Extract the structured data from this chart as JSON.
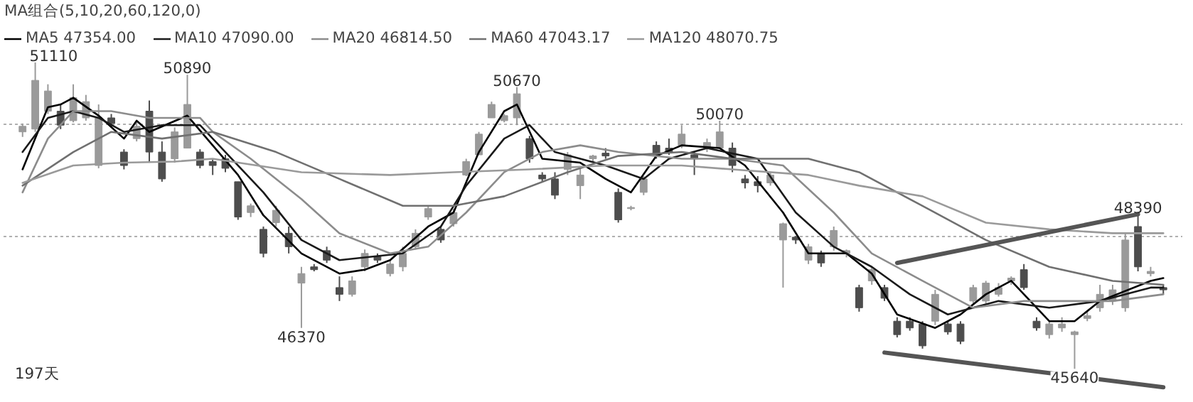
{
  "chart_data": {
    "type": "candlestick",
    "legend_title": "MA组合(5,10,20,60,120,0)",
    "legend": "top",
    "grid": "y",
    "tick_labels": false,
    "colors": [
      "#9a9a9a",
      "#9a9a9a",
      "#9a9a9a",
      "#4d4d4d",
      "#9a9a9a",
      "#9a9a9a",
      "#9a9a9a",
      "#4d4d4d",
      "#4d4d4d",
      "#9a9a9a",
      "#4d4d4d",
      "#4d4d4d",
      "#9a9a9a",
      "#9a9a9a",
      "#4d4d4d",
      "#4d4d4d",
      "#4d4d4d",
      "#4d4d4d",
      "#9a9a9a",
      "#4d4d4d",
      "#9a9a9a",
      "#4d4d4d",
      "#9a9a9a",
      "#4d4d4d",
      "#4d4d4d",
      "#4d4d4d",
      "#9a9a9a",
      "#9a9a9a",
      "#4d4d4d",
      "#9a9a9a",
      "#9a9a9a",
      "#9a9a9a",
      "#9a9a9a",
      "#4d4d4d",
      "#9a9a9a",
      "#9a9a9a",
      "#9a9a9a",
      "#9a9a9a",
      "#9a9a9a",
      "#9a9a9a",
      "#4d4d4d",
      "#4d4d4d",
      "#4d4d4d",
      "#9a9a9a",
      "#9a9a9a",
      "#9a9a9a",
      "#4d4d4d",
      "#4d4d4d",
      "#9a9a9a",
      "#9a9a9a",
      "#4d4d4d",
      "#4d4d4d",
      "#9a9a9a",
      "#4d4d4d",
      "#9a9a9a",
      "#9a9a9a",
      "#4d4d4d",
      "#4d4d4d",
      "#4d4d4d",
      "#9a9a9a",
      "#9a9a9a",
      "#4d4d4d",
      "#9a9a9a",
      "#4d4d4d",
      "#9a9a9a",
      "#9a9a9a",
      "#4d4d4d",
      "#9a9a9a",
      "#4d4d4d",
      "#4d4d4d",
      "#4d4d4d",
      "#4d4d4d",
      "#9a9a9a",
      "#4d4d4d",
      "#4d4d4d",
      "#9a9a9a",
      "#9a9a9a",
      "#9a9a9a",
      "#9a9a9a",
      "#4d4d4d",
      "#4d4d4d",
      "#9a9a9a",
      "#9a9a9a",
      "#9a9a9a",
      "#9a9a9a",
      "#9a9a9a",
      "#9a9a9a",
      "#9a9a9a",
      "#4d4d4d",
      "#9a9a9a",
      "#4d4d4d"
    ],
    "value_labels": [
      null,
      "51110",
      null,
      null,
      null,
      null,
      null,
      null,
      null,
      null,
      null,
      null,
      null,
      "50890",
      null,
      null,
      null,
      null,
      null,
      null,
      null,
      null,
      "46370",
      null,
      null,
      null,
      null,
      null,
      null,
      null,
      null,
      null,
      null,
      null,
      null,
      null,
      null,
      null,
      null,
      "50670",
      null,
      null,
      null,
      null,
      null,
      null,
      null,
      null,
      null,
      null,
      null,
      null,
      null,
      null,
      null,
      "50070",
      null,
      null,
      null,
      null,
      null,
      null,
      null,
      null,
      null,
      null,
      null,
      null,
      null,
      null,
      null,
      null,
      null,
      null,
      null,
      null,
      null,
      null,
      null,
      null,
      null,
      null,
      null,
      "45640",
      null,
      null,
      null,
      null,
      "48390",
      null,
      null
    ],
    "categories": [
      null,
      null,
      null,
      null,
      null,
      null,
      null,
      null,
      null,
      null,
      null,
      null,
      null,
      null,
      null,
      null,
      null,
      null,
      null,
      null,
      null,
      null,
      null,
      null,
      null,
      null,
      null,
      null,
      null,
      null,
      null,
      null,
      null,
      null,
      null,
      null,
      null,
      null,
      null,
      null,
      null,
      null,
      null,
      null,
      null,
      null,
      null,
      null,
      null,
      null,
      null,
      null,
      null,
      null,
      null,
      null,
      null,
      null,
      null,
      null,
      null,
      null,
      null,
      null,
      null,
      null,
      null,
      null,
      null,
      null,
      null,
      null,
      null,
      null,
      null,
      null,
      null,
      null,
      null,
      null,
      null,
      null,
      null,
      null,
      null,
      null,
      null,
      null,
      null,
      null,
      null
    ],
    "yticks": [
      {
        "value": 50000,
        "label": null
      },
      {
        "value": 48000,
        "label": null
      }
    ],
    "ohlc": [
      [
        49870,
        50020,
        49780,
        49970
      ],
      [
        49920,
        51110,
        49870,
        50790
      ],
      [
        50240,
        50720,
        50190,
        50600
      ],
      [
        50240,
        50360,
        49920,
        49990
      ],
      [
        50070,
        50720,
        50040,
        50480
      ],
      [
        50120,
        50530,
        50070,
        50410
      ],
      [
        49270,
        50360,
        49220,
        50120
      ],
      [
        50120,
        50190,
        49950,
        50020
      ],
      [
        49510,
        49560,
        49200,
        49270
      ],
      [
        49750,
        50040,
        49700,
        49970
      ],
      [
        50240,
        50430,
        49320,
        49510
      ],
      [
        49510,
        49700,
        48980,
        49030
      ],
      [
        49390,
        49950,
        49320,
        49870
      ],
      [
        49580,
        50890,
        49580,
        50360
      ],
      [
        49510,
        49560,
        49220,
        49270
      ],
      [
        49340,
        49390,
        49100,
        49270
      ],
      [
        49390,
        49460,
        49150,
        49220
      ],
      [
        48980,
        48980,
        48300,
        48350
      ],
      [
        48430,
        48590,
        48350,
        48550
      ],
      [
        48130,
        48180,
        47630,
        47700
      ],
      [
        48250,
        48550,
        48180,
        48470
      ],
      [
        48060,
        48180,
        47700,
        47820
      ],
      [
        47170,
        47460,
        46370,
        47340
      ],
      [
        47460,
        47510,
        47380,
        47410
      ],
      [
        47750,
        47820,
        47530,
        47580
      ],
      [
        47090,
        47290,
        46850,
        46970
      ],
      [
        46970,
        47290,
        46930,
        47210
      ],
      [
        47460,
        47770,
        47380,
        47700
      ],
      [
        47650,
        47700,
        47530,
        47580
      ],
      [
        47340,
        47580,
        47290,
        47510
      ],
      [
        47460,
        47820,
        47380,
        47700
      ],
      [
        47820,
        48130,
        47770,
        48060
      ],
      [
        48350,
        48550,
        48300,
        48500
      ],
      [
        48130,
        48180,
        47890,
        47940
      ],
      [
        48230,
        48500,
        48180,
        48430
      ],
      [
        49100,
        49390,
        49080,
        49340
      ],
      [
        49460,
        49870,
        49460,
        49830
      ],
      [
        50120,
        50410,
        50120,
        50360
      ],
      [
        50070,
        50190,
        50040,
        50160
      ],
      [
        50120,
        50670,
        49990,
        50550
      ],
      [
        49750,
        49800,
        49320,
        49390
      ],
      [
        49100,
        49150,
        48980,
        49030
      ],
      [
        49030,
        49150,
        48670,
        48740
      ],
      [
        49200,
        49510,
        49100,
        49460
      ],
      [
        48910,
        49220,
        48670,
        49100
      ],
      [
        49390,
        49460,
        49320,
        49440
      ],
      [
        49490,
        49580,
        49390,
        49440
      ],
      [
        48790,
        48860,
        48250,
        48300
      ],
      [
        48500,
        48550,
        48470,
        48520
      ],
      [
        48790,
        49080,
        48740,
        49030
      ],
      [
        49630,
        49700,
        49390,
        49460
      ],
      [
        49580,
        49750,
        49460,
        49510
      ],
      [
        49630,
        49990,
        49580,
        49830
      ],
      [
        49460,
        49510,
        49100,
        49390
      ],
      [
        49580,
        49750,
        49510,
        49680
      ],
      [
        49580,
        50070,
        49560,
        49870
      ],
      [
        49580,
        49680,
        49150,
        49270
      ],
      [
        49030,
        49100,
        48860,
        48960
      ],
      [
        48980,
        49080,
        48790,
        48910
      ],
      [
        48960,
        49150,
        48910,
        49100
      ],
      [
        47940,
        48250,
        47090,
        48230
      ],
      [
        47990,
        48010,
        47870,
        47940
      ],
      [
        47580,
        47870,
        47510,
        47820
      ],
      [
        47700,
        47750,
        47460,
        47530
      ],
      [
        47820,
        48180,
        47750,
        48110
      ],
      [
        47700,
        47770,
        47630,
        47750
      ],
      [
        47090,
        47140,
        46660,
        46730
      ],
      [
        47210,
        47460,
        47140,
        47410
      ],
      [
        47090,
        47140,
        46850,
        46900
      ],
      [
        46490,
        46560,
        46200,
        46250
      ],
      [
        46490,
        46560,
        46320,
        46370
      ],
      [
        46440,
        46490,
        46000,
        46050
      ],
      [
        46490,
        47050,
        46420,
        46970
      ],
      [
        46440,
        46490,
        46250,
        46300
      ],
      [
        46440,
        46490,
        46080,
        46130
      ],
      [
        46850,
        47140,
        46810,
        47090
      ],
      [
        46850,
        47210,
        46810,
        47170
      ],
      [
        46970,
        47170,
        46930,
        47090
      ],
      [
        47210,
        47290,
        47140,
        47260
      ],
      [
        47410,
        47510,
        47050,
        47090
      ],
      [
        46490,
        46560,
        46320,
        46370
      ],
      [
        46250,
        46490,
        46180,
        46440
      ],
      [
        46370,
        46560,
        46300,
        46440
      ],
      [
        46250,
        46320,
        45640,
        46300
      ],
      [
        46540,
        46660,
        46490,
        46590
      ],
      [
        46730,
        47140,
        46660,
        46970
      ],
      [
        46850,
        47140,
        46780,
        47050
      ],
      [
        46730,
        48060,
        46660,
        47940
      ],
      [
        48180,
        48390,
        47380,
        47460
      ],
      [
        47340,
        47460,
        47290,
        47380
      ],
      [
        47090,
        47140,
        46970,
        47050
      ]
    ],
    "series": [
      {
        "type": "line",
        "name": "MA5 47354.00",
        "color": "#000000",
        "values": [
          49200,
          null,
          50310,
          50360,
          50480,
          null,
          50160,
          null,
          49750,
          50070,
          49870,
          null,
          null,
          50160,
          null,
          49630,
          null,
          49100,
          null,
          48380,
          null,
          null,
          47700,
          null,
          null,
          47340,
          null,
          47410,
          null,
          47580,
          null,
          null,
          48180,
          null,
          48430,
          null,
          49510,
          null,
          50240,
          50360,
          null,
          49390,
          null,
          null,
          49320,
          null,
          49030,
          null,
          48790,
          null,
          49440,
          null,
          49630,
          null,
          null,
          49580,
          null,
          49270,
          null,
          null,
          48430,
          null,
          47700,
          null,
          null,
          47700,
          null,
          47340,
          null,
          46610,
          null,
          null,
          46370,
          null,
          46610,
          null,
          46970,
          null,
          47210,
          null,
          null,
          46490,
          null,
          46490,
          null,
          46850,
          null,
          null,
          null,
          47210,
          47260
        ]
      },
      {
        "type": "line",
        "name": "MA10 47090.00",
        "color": "#1a1a1a",
        "values": [
          49510,
          null,
          50120,
          null,
          50240,
          null,
          50120,
          null,
          49870,
          null,
          null,
          49990,
          null,
          null,
          49990,
          null,
          49510,
          null,
          null,
          48790,
          null,
          null,
          47940,
          null,
          null,
          47580,
          null,
          null,
          null,
          null,
          47700,
          null,
          null,
          48180,
          null,
          48910,
          null,
          null,
          49750,
          null,
          49990,
          null,
          49510,
          null,
          null,
          null,
          49270,
          null,
          null,
          49030,
          null,
          49390,
          null,
          null,
          49580,
          null,
          null,
          null,
          49390,
          null,
          null,
          48430,
          null,
          null,
          47820,
          null,
          null,
          47460,
          null,
          null,
          46970,
          null,
          null,
          46610,
          null,
          null,
          null,
          46850,
          null,
          null,
          null,
          46730,
          null,
          null,
          null,
          46850,
          null,
          null,
          null,
          47090,
          47090
        ]
      },
      {
        "type": "line",
        "name": "MA20 46814.50",
        "color": "#8c8c8c",
        "values": [
          48790,
          null,
          49750,
          null,
          50240,
          null,
          null,
          50240,
          null,
          null,
          50120,
          null,
          null,
          null,
          50120,
          49870,
          null,
          null,
          49390,
          null,
          null,
          null,
          48670,
          null,
          null,
          48060,
          null,
          null,
          null,
          47700,
          null,
          null,
          47820,
          null,
          null,
          48430,
          null,
          null,
          49150,
          null,
          null,
          49510,
          null,
          null,
          49630,
          null,
          null,
          49510,
          null,
          null,
          null,
          null,
          49390,
          null,
          null,
          null,
          49390,
          null,
          null,
          null,
          49270,
          null,
          null,
          null,
          48430,
          null,
          null,
          47700,
          null,
          null,
          null,
          47210,
          null,
          null,
          null,
          46730,
          null,
          null,
          null,
          46850,
          null,
          null,
          46850,
          null,
          null,
          null,
          46850,
          null,
          null,
          null,
          46970
        ]
      },
      {
        "type": "line",
        "name": "MA60 47043.17",
        "color": "#707070",
        "values": [
          48910,
          null,
          null,
          null,
          49510,
          null,
          null,
          49870,
          null,
          null,
          null,
          49750,
          null,
          null,
          null,
          49870,
          null,
          null,
          null,
          null,
          49510,
          null,
          null,
          null,
          null,
          49030,
          null,
          null,
          null,
          null,
          48550,
          null,
          null,
          null,
          48550,
          null,
          null,
          null,
          48720,
          null,
          null,
          null,
          null,
          49150,
          null,
          null,
          null,
          49440,
          null,
          null,
          null,
          null,
          49510,
          null,
          null,
          null,
          49390,
          null,
          null,
          null,
          null,
          null,
          49390,
          null,
          null,
          null,
          49150,
          null,
          null,
          null,
          null,
          48550,
          null,
          null,
          null,
          null,
          47940,
          null,
          null,
          null,
          null,
          47460,
          null,
          null,
          null,
          null,
          47210,
          null,
          null,
          null,
          47140
        ]
      },
      {
        "type": "line",
        "name": "MA120 48070.75",
        "color": "#9a9a9a",
        "values": [
          48960,
          null,
          null,
          null,
          49270,
          null,
          null,
          null,
          49320,
          null,
          null,
          null,
          49340,
          null,
          null,
          49390,
          null,
          null,
          null,
          null,
          null,
          null,
          49150,
          null,
          null,
          null,
          null,
          null,
          null,
          49100,
          null,
          null,
          null,
          null,
          49150,
          null,
          null,
          null,
          null,
          null,
          49200,
          null,
          null,
          null,
          null,
          null,
          49270,
          null,
          null,
          null,
          null,
          null,
          49270,
          null,
          null,
          null,
          49200,
          null,
          null,
          null,
          null,
          null,
          49100,
          null,
          null,
          null,
          48910,
          null,
          null,
          null,
          null,
          48720,
          null,
          null,
          null,
          null,
          48250,
          null,
          null,
          null,
          null,
          48130,
          null,
          null,
          null,
          null,
          48060,
          null,
          null,
          null,
          48060
        ]
      },
      {
        "type": "line",
        "color": "#555555",
        "values": [
          null,
          null,
          null,
          null,
          null,
          null,
          null,
          null,
          null,
          null,
          null,
          null,
          null,
          null,
          null,
          null,
          null,
          null,
          null,
          null,
          null,
          null,
          null,
          null,
          null,
          null,
          null,
          null,
          null,
          null,
          null,
          null,
          null,
          null,
          null,
          null,
          null,
          null,
          null,
          null,
          null,
          null,
          null,
          null,
          null,
          null,
          null,
          null,
          null,
          null,
          null,
          null,
          null,
          null,
          null,
          null,
          null,
          null,
          null,
          null,
          null,
          null,
          null,
          null,
          null,
          null,
          null,
          null,
          null,
          47530,
          null,
          null,
          null,
          null,
          null,
          null,
          null,
          null,
          null,
          null,
          null,
          null,
          null,
          null,
          null,
          null,
          null,
          null,
          48400,
          null,
          null
        ]
      },
      {
        "type": "line",
        "color": "#555555",
        "values": [
          null,
          null,
          null,
          null,
          null,
          null,
          null,
          null,
          null,
          null,
          null,
          null,
          null,
          null,
          null,
          null,
          null,
          null,
          null,
          null,
          null,
          null,
          null,
          null,
          null,
          null,
          null,
          null,
          null,
          null,
          null,
          null,
          null,
          null,
          null,
          null,
          null,
          null,
          null,
          null,
          null,
          null,
          null,
          null,
          null,
          null,
          null,
          null,
          null,
          null,
          null,
          null,
          null,
          null,
          null,
          null,
          null,
          null,
          null,
          null,
          null,
          null,
          null,
          null,
          null,
          null,
          null,
          null,
          45930,
          null,
          null,
          null,
          null,
          null,
          null,
          null,
          null,
          null,
          null,
          null,
          null,
          null,
          null,
          null,
          null,
          null,
          null,
          null,
          null,
          null,
          45310
        ]
      }
    ],
    "annotations": [
      "197天"
    ]
  }
}
